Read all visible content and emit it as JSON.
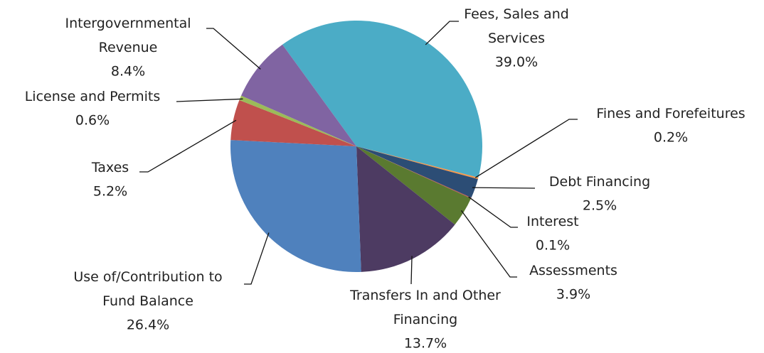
{
  "chart_data": {
    "type": "pie",
    "categories": [
      "Fees, Sales and Services",
      "Fines and Forefeitures",
      "Debt Financing",
      "Interest",
      "Assessments",
      "Transfers In and Other Financing",
      "Use of/Contribution to Fund Balance",
      "Taxes",
      "License and Permits",
      "Intergovernmental Revenue"
    ],
    "values": [
      39.0,
      0.2,
      2.5,
      0.1,
      3.9,
      13.7,
      26.4,
      5.2,
      0.6,
      8.4
    ],
    "value_labels": [
      "39.0%",
      "0.2%",
      "2.5%",
      "0.1%",
      "3.9%",
      "13.7%",
      "26.4%",
      "5.2%",
      "0.6%",
      "8.4%"
    ],
    "colors": [
      "#4bacc6",
      "#f79646",
      "#2c4d75",
      "#c0504d",
      "#5a7a30",
      "#4d3b62",
      "#4f81bd",
      "#c0504d",
      "#9bbb59",
      "#8064a2"
    ]
  }
}
